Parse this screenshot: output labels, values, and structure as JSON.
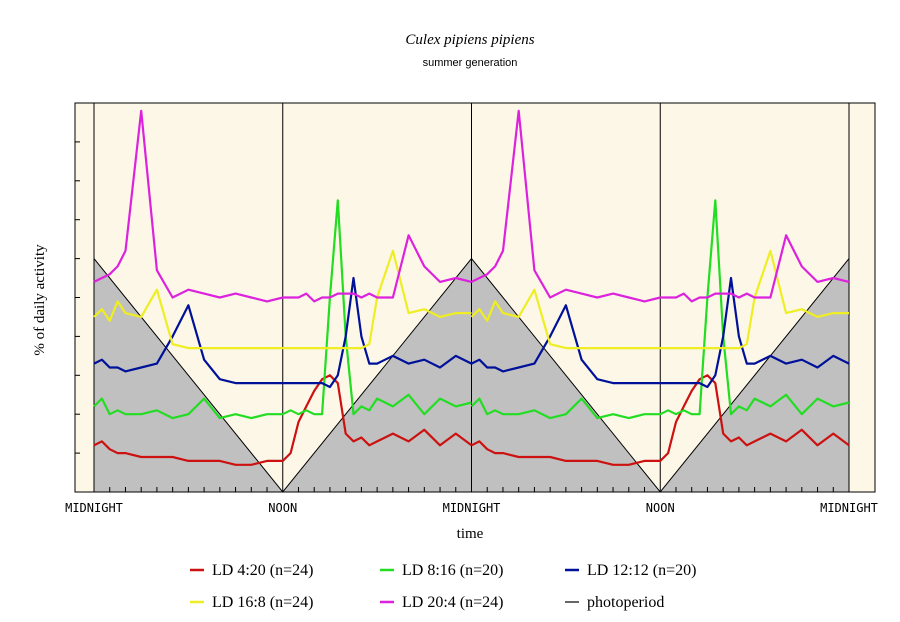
{
  "chart_data": {
    "type": "line",
    "title": "Culex pipiens pipiens",
    "subtitle": "summer generation",
    "xlabel": "time",
    "ylabel": "% of daily activity",
    "x_tick_labels": [
      "MIDNIGHT",
      "NOON",
      "MIDNIGHT",
      "NOON",
      "MIDNIGHT"
    ],
    "xlim": [
      0,
      48
    ],
    "grid": false,
    "legend_position": "bottom",
    "colors": {
      "background": "#fdf7e8",
      "photoperiod_fill": "#c0c0c0",
      "divider": "#000000"
    },
    "series": [
      {
        "label": "LD 4:20 (n=24)",
        "color": "#cc1111",
        "x": [
          0,
          0.5,
          1,
          1.5,
          2,
          3,
          4,
          5,
          6,
          7,
          8,
          9,
          10,
          11,
          12,
          12.5,
          13,
          13.5,
          14,
          14.5,
          15,
          15.5,
          16,
          16.5,
          17,
          17.5,
          18,
          19,
          20,
          21,
          22,
          23,
          24
        ],
        "y": [
          0.12,
          0.13,
          0.11,
          0.1,
          0.1,
          0.09,
          0.09,
          0.09,
          0.08,
          0.08,
          0.08,
          0.07,
          0.07,
          0.08,
          0.08,
          0.1,
          0.18,
          0.22,
          0.26,
          0.29,
          0.3,
          0.28,
          0.15,
          0.13,
          0.14,
          0.12,
          0.13,
          0.15,
          0.13,
          0.16,
          0.12,
          0.15,
          0.12
        ]
      },
      {
        "label": "LD 8:16 (n=20)",
        "color": "#22dd22",
        "x": [
          0,
          0.5,
          1,
          1.5,
          2,
          3,
          4,
          5,
          6,
          7,
          8,
          9,
          10,
          11,
          12,
          12.5,
          13,
          13.5,
          14,
          14.5,
          15,
          15.5,
          16,
          16.5,
          17,
          17.5,
          18,
          19,
          20,
          21,
          22,
          23,
          24
        ],
        "y": [
          0.22,
          0.24,
          0.2,
          0.21,
          0.2,
          0.2,
          0.21,
          0.19,
          0.2,
          0.24,
          0.19,
          0.2,
          0.19,
          0.2,
          0.2,
          0.21,
          0.2,
          0.21,
          0.2,
          0.2,
          0.5,
          0.75,
          0.4,
          0.2,
          0.22,
          0.21,
          0.24,
          0.22,
          0.25,
          0.2,
          0.24,
          0.22,
          0.23
        ]
      },
      {
        "label": "LD 12:12 (n=20)",
        "color": "#001199",
        "x": [
          0,
          0.5,
          1,
          1.5,
          2,
          3,
          4,
          5,
          6,
          7,
          8,
          9,
          10,
          11,
          12,
          12.5,
          13,
          13.5,
          14,
          14.5,
          15,
          15.5,
          16,
          16.5,
          17,
          17.5,
          18,
          19,
          20,
          21,
          22,
          23,
          24
        ],
        "y": [
          0.33,
          0.34,
          0.32,
          0.32,
          0.31,
          0.32,
          0.33,
          0.4,
          0.48,
          0.34,
          0.29,
          0.28,
          0.28,
          0.28,
          0.28,
          0.28,
          0.28,
          0.28,
          0.28,
          0.28,
          0.27,
          0.3,
          0.4,
          0.55,
          0.4,
          0.33,
          0.33,
          0.35,
          0.33,
          0.34,
          0.32,
          0.35,
          0.33
        ]
      },
      {
        "label": "LD 16:8 (n=24)",
        "color": "#eeee22",
        "x": [
          0,
          0.5,
          1,
          1.5,
          2,
          3,
          4,
          5,
          6,
          7,
          8,
          9,
          10,
          11,
          12,
          12.5,
          13,
          13.5,
          14,
          14.5,
          15,
          15.5,
          16,
          16.5,
          17,
          17.5,
          18,
          19,
          20,
          21,
          22,
          23,
          24
        ],
        "y": [
          0.45,
          0.47,
          0.44,
          0.49,
          0.46,
          0.45,
          0.52,
          0.38,
          0.37,
          0.37,
          0.37,
          0.37,
          0.37,
          0.37,
          0.37,
          0.37,
          0.37,
          0.37,
          0.37,
          0.37,
          0.37,
          0.37,
          0.37,
          0.37,
          0.37,
          0.38,
          0.5,
          0.62,
          0.46,
          0.47,
          0.45,
          0.46,
          0.46
        ]
      },
      {
        "label": "LD 20:4 (n=24)",
        "color": "#dd22dd",
        "x": [
          0,
          0.5,
          1,
          1.5,
          2,
          3,
          4,
          5,
          6,
          7,
          8,
          9,
          10,
          11,
          12,
          12.5,
          13,
          13.5,
          14,
          14.5,
          15,
          15.5,
          16,
          16.5,
          17,
          17.5,
          18,
          19,
          20,
          21,
          22,
          23,
          24
        ],
        "y": [
          0.54,
          0.55,
          0.56,
          0.58,
          0.62,
          0.98,
          0.57,
          0.5,
          0.52,
          0.51,
          0.5,
          0.51,
          0.5,
          0.49,
          0.5,
          0.5,
          0.5,
          0.51,
          0.49,
          0.5,
          0.5,
          0.51,
          0.51,
          0.51,
          0.5,
          0.51,
          0.5,
          0.5,
          0.66,
          0.58,
          0.54,
          0.55,
          0.54
        ]
      }
    ],
    "photoperiod": {
      "label": "photoperiod",
      "color": "#000000",
      "x": [
        0,
        12,
        24,
        36,
        48
      ],
      "y": [
        0.6,
        0.0,
        0.6,
        0.0,
        0.6
      ]
    }
  }
}
